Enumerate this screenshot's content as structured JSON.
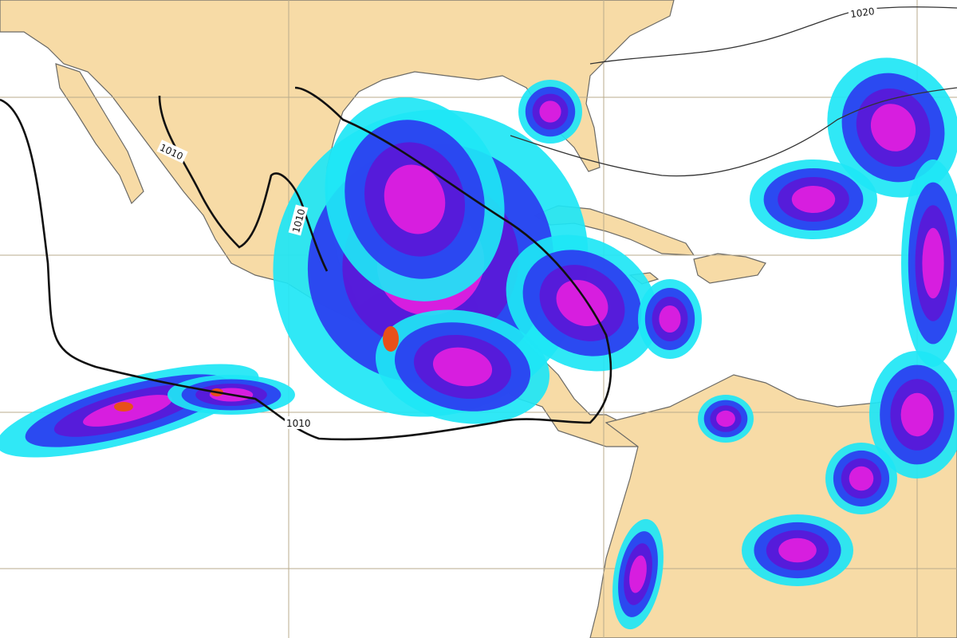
{
  "map": {
    "isobar_labels": [
      {
        "text": "1010"
      },
      {
        "text": "1010"
      },
      {
        "text": "1010"
      },
      {
        "text": "1020"
      }
    ],
    "colors": {
      "land": "#f7dba6",
      "ocean": "#ffffff",
      "precip_light": "#1ee6f5",
      "precip_moderate": "#2b3cf0",
      "precip_heavy": "#5a18d8",
      "precip_very_heavy": "#e21ee0",
      "precip_extreme": "#e8501a"
    }
  }
}
